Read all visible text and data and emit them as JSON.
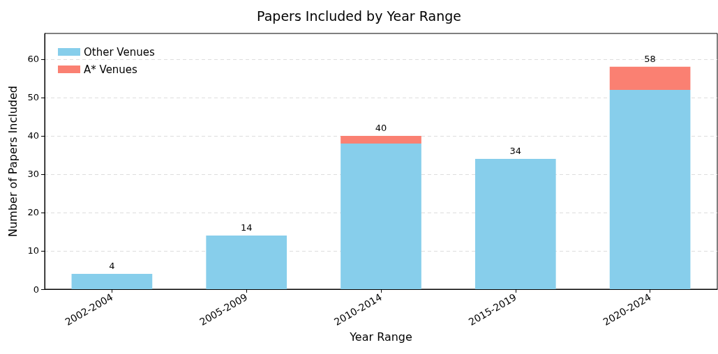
{
  "chart_data": {
    "type": "bar",
    "title": "Papers Included by Year Range",
    "xlabel": "Year Range",
    "ylabel": "Number of Papers Included",
    "categories": [
      "2002-2004",
      "2005-2009",
      "2010-2014",
      "2015-2019",
      "2020-2024"
    ],
    "series": [
      {
        "name": "Other Venues",
        "color": "#87ceeb",
        "values": [
          4,
          14,
          38,
          34,
          52
        ]
      },
      {
        "name": "A* Venues",
        "color": "#fa8072",
        "values": [
          0,
          0,
          2,
          0,
          6
        ]
      }
    ],
    "stacked": true,
    "totals": [
      "4",
      "14",
      "40",
      "34",
      "58"
    ],
    "ylim": [
      0,
      66.7
    ],
    "yticks": [
      0,
      10,
      20,
      30,
      40,
      50,
      60
    ],
    "grid": "y",
    "legend": "top left"
  }
}
